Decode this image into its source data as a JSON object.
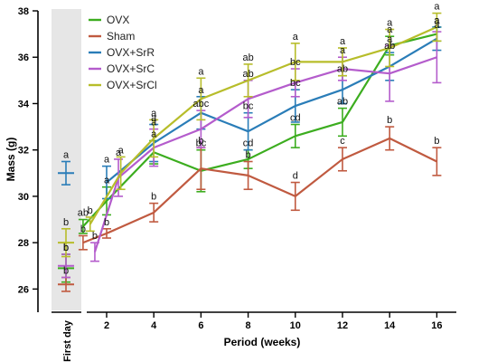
{
  "chart_data": {
    "type": "line",
    "xlabel": "Period (weeks)",
    "ylabel": "Mass (g)",
    "ylim": [
      25,
      38
    ],
    "yticks": [
      26,
      28,
      30,
      32,
      34,
      36,
      38
    ],
    "first_day_label": "First day",
    "x_ticks": [
      2,
      4,
      6,
      8,
      10,
      12,
      14,
      16
    ],
    "legend_position": "top-left",
    "grid": false,
    "series": [
      {
        "name": "OVX",
        "color": "#3cad1f",
        "first_day": {
          "y": 26.9,
          "err": 0.6,
          "letter": "b"
        },
        "x": [
          1,
          2,
          4,
          6,
          8,
          10,
          12,
          14,
          16
        ],
        "y": [
          28.7,
          29.8,
          31.9,
          31.1,
          31.6,
          32.6,
          33.2,
          36.5,
          37.0
        ],
        "err": [
          0.3,
          0.6,
          0.5,
          0.9,
          0.4,
          0.5,
          0.6,
          0.4,
          0.3
        ],
        "letters": [
          "ab",
          "a",
          "a",
          "bc",
          "cd",
          "cd",
          "ab",
          "a",
          "a"
        ]
      },
      {
        "name": "Sham",
        "color": "#c05a40",
        "first_day": {
          "y": 26.2,
          "err": 0.3,
          "letter": "b"
        },
        "x": [
          1,
          2,
          4,
          6,
          8,
          10,
          12,
          14,
          16
        ],
        "y": [
          28.0,
          28.4,
          29.3,
          31.2,
          30.9,
          30.0,
          31.6,
          32.5,
          31.5
        ],
        "err": [
          0.3,
          0.2,
          0.4,
          0.9,
          0.6,
          0.6,
          0.5,
          0.5,
          0.6
        ],
        "letters": [
          "b",
          "b",
          "b",
          "b",
          "b",
          "d",
          "c",
          "b",
          "b"
        ]
      },
      {
        "name": "OVX+SrR",
        "color": "#2a7db8",
        "first_day": {
          "y": 31.0,
          "err": 0.5,
          "letter": "a"
        },
        "x": [
          2,
          4,
          6,
          8,
          10,
          12,
          14,
          16
        ],
        "y": [
          30.6,
          32.3,
          33.6,
          32.8,
          33.9,
          34.6,
          35.6,
          36.8
        ],
        "err": [
          0.7,
          0.8,
          0.7,
          0.8,
          0.7,
          0.6,
          0.6,
          0.5
        ],
        "letters": [
          "a",
          "a",
          "a",
          "bc",
          "bc",
          "ab",
          "ab",
          "a"
        ]
      },
      {
        "name": "OVX+SrC",
        "color": "#b45ccc",
        "first_day": {
          "y": 27.0,
          "err": 0.5,
          "letter": "b"
        },
        "x": [
          1.5,
          2.5,
          4,
          6,
          8,
          10,
          12,
          14,
          16
        ],
        "y": [
          27.6,
          30.8,
          32.1,
          32.9,
          34.2,
          34.9,
          35.5,
          35.3,
          36.0
        ],
        "err": [
          0.4,
          0.8,
          0.8,
          0.8,
          0.8,
          0.6,
          0.5,
          1.2,
          1.1
        ],
        "letters": [
          "b",
          "a",
          "a",
          "abc",
          "ab",
          "bc",
          "a",
          "a",
          "a"
        ]
      },
      {
        "name": "OVX+SrCl",
        "color": "#b7bd2a",
        "first_day": {
          "y": 28.0,
          "err": 0.6,
          "letter": "b"
        },
        "x": [
          1.3,
          2.6,
          4,
          6,
          8,
          10,
          12,
          14,
          16
        ],
        "y": [
          28.8,
          31.0,
          32.5,
          34.2,
          35.0,
          35.8,
          35.8,
          36.4,
          37.3
        ],
        "err": [
          0.3,
          0.7,
          0.8,
          0.9,
          0.7,
          0.8,
          0.6,
          0.8,
          0.6
        ],
        "letters": [
          "b",
          "a",
          "a",
          "a",
          "ab",
          "a",
          "a",
          "a",
          "a"
        ]
      }
    ]
  }
}
